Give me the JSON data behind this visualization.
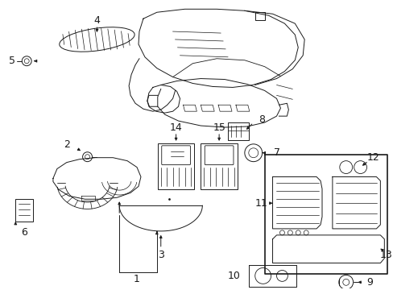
{
  "bg_color": "#ffffff",
  "line_color": "#1a1a1a",
  "lw": 0.7,
  "figsize": [
    4.89,
    3.6
  ],
  "dpi": 100
}
